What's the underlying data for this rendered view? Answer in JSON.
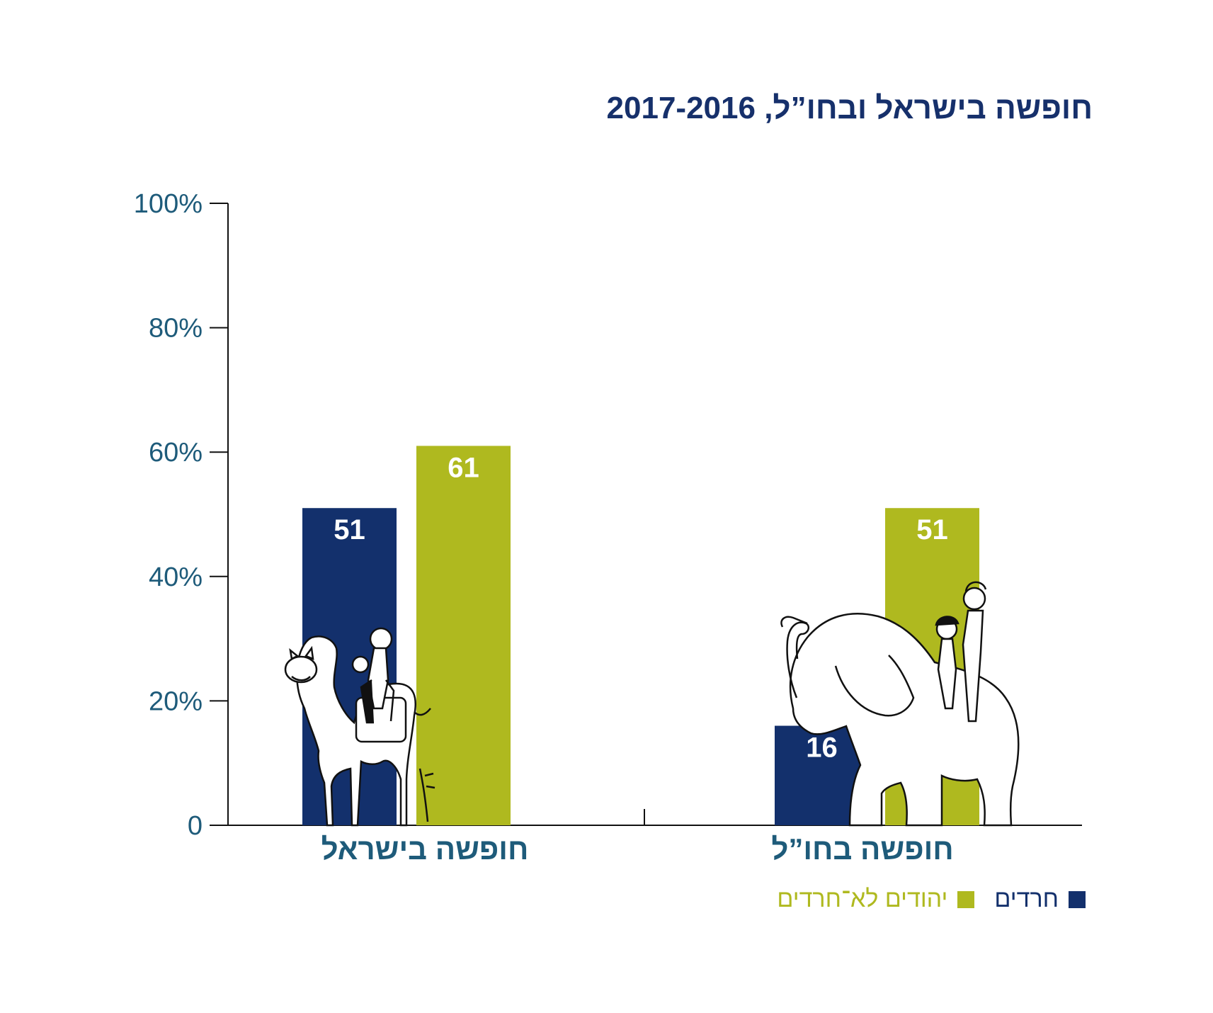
{
  "chart_data": {
    "type": "bar",
    "title": "חופשה בישראל ובחו”ל, 2017-2016",
    "categories": [
      "חופשה בישראל",
      "חופשה בחו”ל"
    ],
    "series": [
      {
        "name": "חרדים",
        "values": [
          51,
          16
        ],
        "color": "#13306c"
      },
      {
        "name": "יהודים לא־חרדים",
        "values": [
          61,
          51
        ],
        "color": "#afb91f"
      }
    ],
    "ylim": [
      0,
      100
    ],
    "yticks": [
      "0",
      "20%",
      "40%",
      "60%",
      "80%",
      "100%"
    ],
    "ytick_values": [
      0,
      20,
      40,
      60,
      80,
      100
    ],
    "legend": "bottom-right",
    "grid": false
  }
}
